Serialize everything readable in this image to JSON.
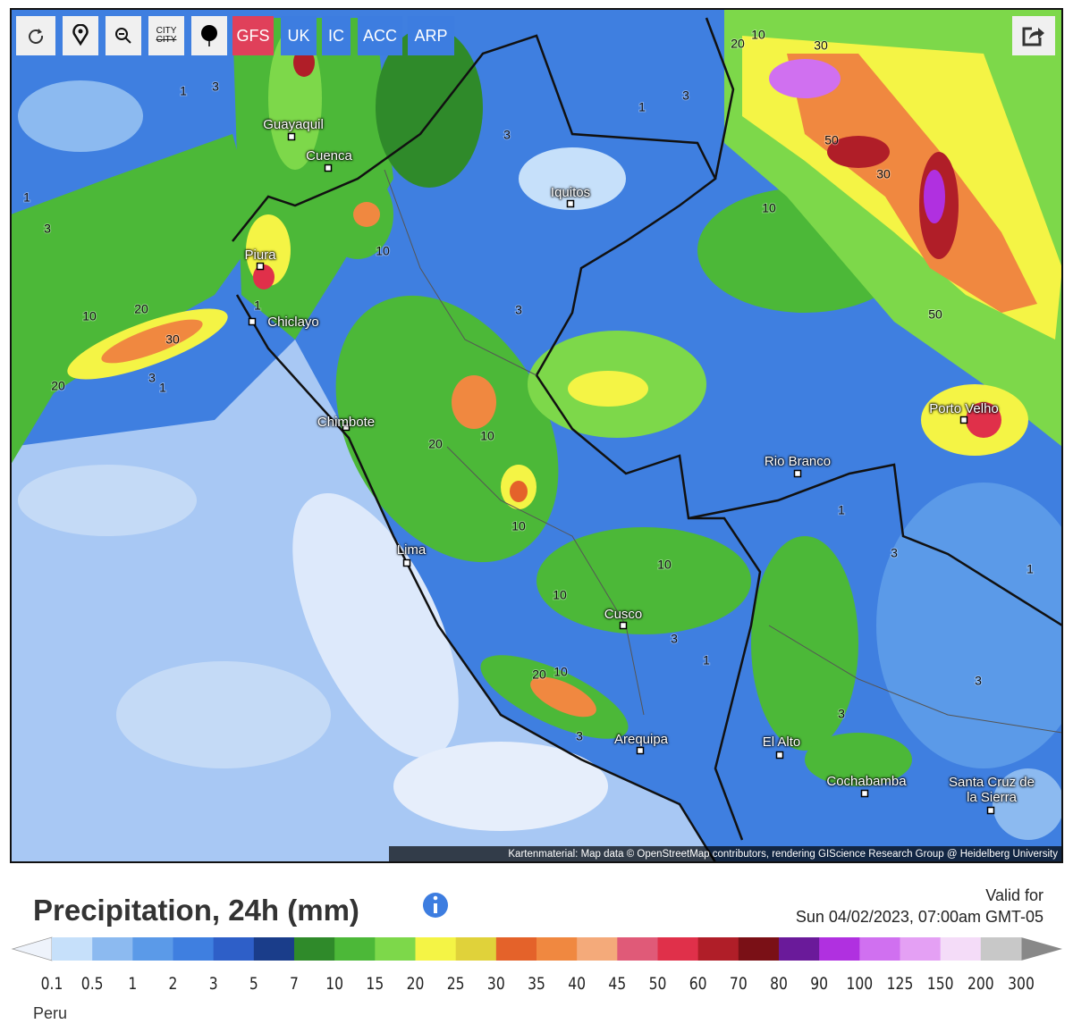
{
  "toolbar": {
    "city_toggle": [
      "CITY",
      "CITY"
    ],
    "models": [
      "GFS",
      "UK",
      "IC",
      "ACC",
      "ARP"
    ]
  },
  "map": {
    "cities": [
      "Guayaquil",
      "Cuenca",
      "Iquitos",
      "Piura",
      "Chiclayo",
      "Chimbote",
      "Lima",
      "Cusco",
      "Arequipa",
      "El Alto",
      "Cochabamba",
      "Santa Cruz de la Sierra",
      "Rio Branco",
      "Porto Velho"
    ],
    "contour_labels": [
      20,
      10,
      30,
      50,
      30,
      10,
      50,
      1,
      3,
      1,
      3,
      10,
      20,
      30,
      20,
      3,
      1,
      3,
      1,
      3,
      10,
      3,
      20,
      10,
      10,
      10,
      10,
      1,
      3,
      1,
      3,
      1,
      3,
      3,
      20,
      10,
      3,
      1
    ],
    "attribution": "Kartenmaterial: Map data © OpenStreetMap contributors, rendering GIScience Research Group @ Heidelberg University"
  },
  "header": {
    "title": "Precipitation, 24h (mm)",
    "valid_label": "Valid for",
    "valid_time": "Sun 04/02/2023, 07:00am GMT-05"
  },
  "legend": {
    "ticks": [
      0.1,
      0.5,
      1,
      2,
      3,
      5,
      7,
      10,
      15,
      20,
      25,
      30,
      35,
      40,
      45,
      50,
      60,
      70,
      80,
      90,
      100,
      125,
      150,
      200,
      300
    ],
    "colors": [
      "#c6e0fa",
      "#8cbaf0",
      "#5b9ae8",
      "#3f7fe0",
      "#2e5fc8",
      "#1a3d8a",
      "#2f8a2a",
      "#4cb838",
      "#7dd84a",
      "#f4f445",
      "#e0d23a",
      "#e4622a",
      "#f08840",
      "#f4aa7a",
      "#e05a78",
      "#e0304a",
      "#b01e28",
      "#7a1016",
      "#6a1a9a",
      "#b030e0",
      "#d070f0",
      "#e4a0f4",
      "#f4dcf8",
      "#c8c8c8"
    ]
  },
  "footer": {
    "region": "Peru"
  }
}
